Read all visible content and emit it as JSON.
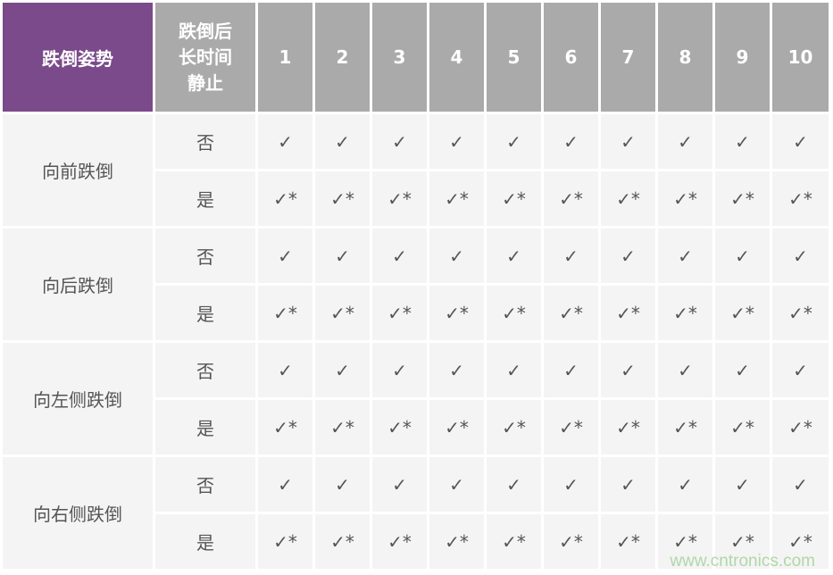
{
  "table": {
    "header": {
      "posture": "跌倒姿势",
      "static_lines": [
        "跌倒后",
        "长时间",
        "静止"
      ],
      "trials": [
        "1",
        "2",
        "3",
        "4",
        "5",
        "6",
        "7",
        "8",
        "9",
        "10"
      ]
    },
    "groups": [
      {
        "posture": "向前跌倒",
        "rows": [
          {
            "static": "否",
            "results": [
              "✓",
              "✓",
              "✓",
              "✓",
              "✓",
              "✓",
              "✓",
              "✓",
              "✓",
              "✓"
            ]
          },
          {
            "static": "是",
            "results": [
              "✓*",
              "✓*",
              "✓*",
              "✓*",
              "✓*",
              "✓*",
              "✓*",
              "✓*",
              "✓*",
              "✓*"
            ]
          }
        ]
      },
      {
        "posture": "向后跌倒",
        "rows": [
          {
            "static": "否",
            "results": [
              "✓",
              "✓",
              "✓",
              "✓",
              "✓",
              "✓",
              "✓",
              "✓",
              "✓",
              "✓"
            ]
          },
          {
            "static": "是",
            "results": [
              "✓*",
              "✓*",
              "✓*",
              "✓*",
              "✓*",
              "✓*",
              "✓*",
              "✓*",
              "✓*",
              "✓*"
            ]
          }
        ]
      },
      {
        "posture": "向左侧跌倒",
        "rows": [
          {
            "static": "否",
            "results": [
              "✓",
              "✓",
              "✓",
              "✓",
              "✓",
              "✓",
              "✓",
              "✓",
              "✓",
              "✓"
            ]
          },
          {
            "static": "是",
            "results": [
              "✓*",
              "✓*",
              "✓*",
              "✓*",
              "✓*",
              "✓*",
              "✓*",
              "✓*",
              "✓*",
              "✓*"
            ]
          }
        ]
      },
      {
        "posture": "向右侧跌倒",
        "rows": [
          {
            "static": "否",
            "results": [
              "✓",
              "✓",
              "✓",
              "✓",
              "✓",
              "✓",
              "✓",
              "✓",
              "✓",
              "✓"
            ]
          },
          {
            "static": "是",
            "results": [
              "✓*",
              "✓*",
              "✓*",
              "✓*",
              "✓*",
              "✓*",
              "✓*",
              "✓*",
              "✓*",
              "✓*"
            ]
          }
        ]
      }
    ]
  },
  "colors": {
    "posture_header": "#7b4a8a",
    "header": "#aaaaaa",
    "cell": "#f4f4f4",
    "watermark": "#a9d4a0"
  },
  "watermark": "www.cntronics.com"
}
